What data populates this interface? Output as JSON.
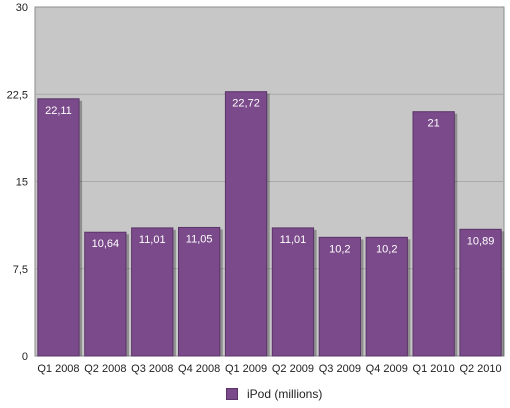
{
  "chart_data": {
    "type": "bar",
    "categories": [
      "Q1 2008",
      "Q2 2008",
      "Q3 2008",
      "Q4 2008",
      "Q1 2009",
      "Q2 2009",
      "Q3 2009",
      "Q4 2009",
      "Q1 2010",
      "Q2 2010"
    ],
    "series": [
      {
        "name": "iPod (millions)",
        "values": [
          22.11,
          10.64,
          11.01,
          11.05,
          22.72,
          11.01,
          10.2,
          10.2,
          21,
          10.89
        ],
        "labels": [
          "22,11",
          "10,64",
          "11,01",
          "11,05",
          "22,72",
          "11,01",
          "10,2",
          "10,2",
          "21",
          "10,89"
        ]
      }
    ],
    "yticks": [
      0,
      7.5,
      15,
      22.5,
      30
    ],
    "ytick_labels": [
      "0",
      "7,5",
      "15",
      "22,5",
      "30"
    ],
    "ylim": [
      0,
      30
    ],
    "grid": true,
    "legend_position": "bottom",
    "colors": {
      "bar": "#7b4a8b",
      "bar_edge": "#5a3468",
      "plot_bg": "#c7c7c7",
      "grid": "#a9a9a9"
    }
  }
}
